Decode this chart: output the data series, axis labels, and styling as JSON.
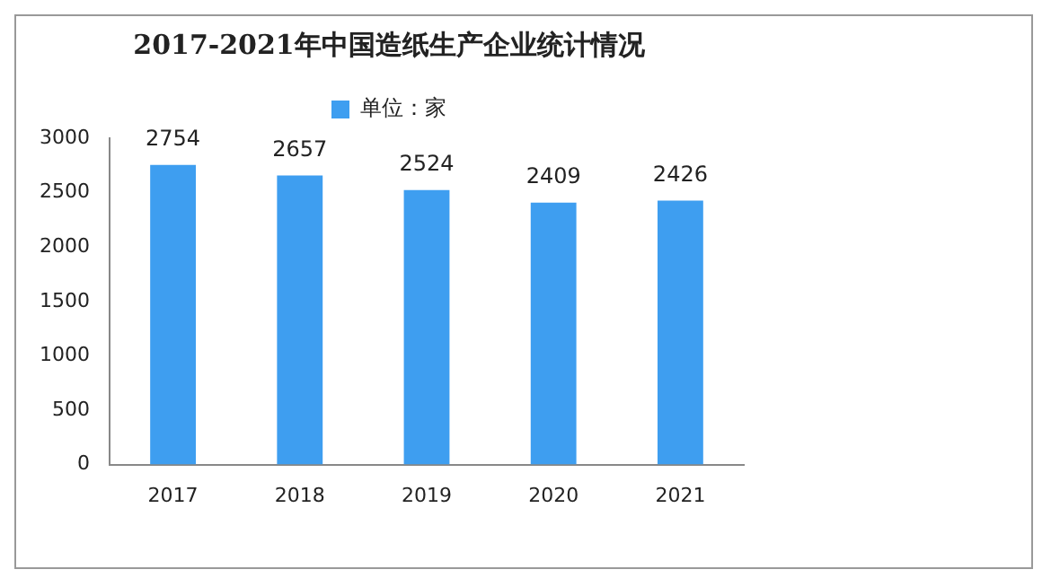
{
  "chart_data": {
    "type": "bar",
    "title": "2017-2021年中国造纸生产企业统计情况",
    "categories": [
      "2017",
      "2018",
      "2019",
      "2020",
      "2021"
    ],
    "series": [
      {
        "name": "单位：家",
        "color": "#3e9ef0",
        "values": [
          2754,
          2657,
          2524,
          2409,
          2426
        ]
      }
    ],
    "ylim": [
      0,
      3000
    ],
    "yticks": [
      0,
      500,
      1000,
      1500,
      2000,
      2500,
      3000
    ],
    "grid": false,
    "legend": "top",
    "data_labels": true
  }
}
